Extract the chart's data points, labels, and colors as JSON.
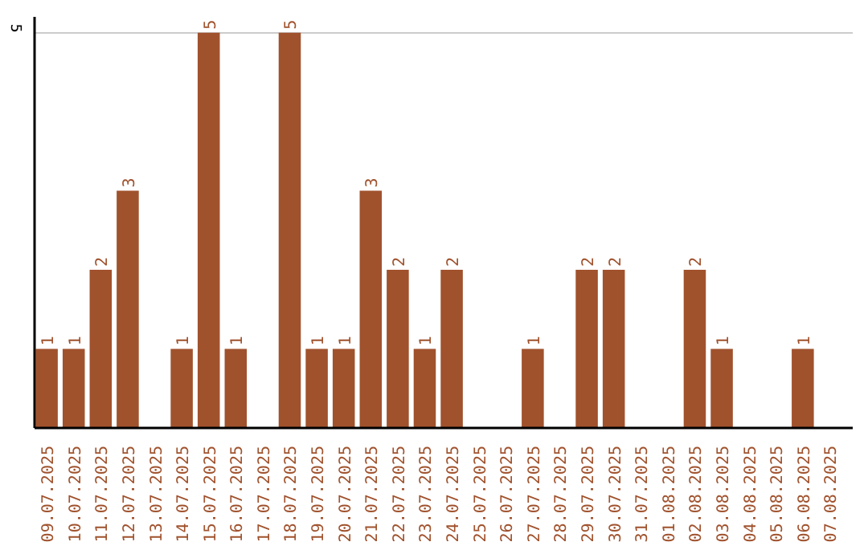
{
  "chart_data": {
    "type": "bar",
    "categories": [
      "09.07.2025",
      "10.07.2025",
      "11.07.2025",
      "12.07.2025",
      "13.07.2025",
      "14.07.2025",
      "15.07.2025",
      "16.07.2025",
      "17.07.2025",
      "18.07.2025",
      "19.07.2025",
      "20.07.2025",
      "21.07.2025",
      "22.07.2025",
      "23.07.2025",
      "24.07.2025",
      "25.07.2025",
      "26.07.2025",
      "27.07.2025",
      "28.07.2025",
      "29.07.2025",
      "30.07.2025",
      "31.07.2025",
      "01.08.2025",
      "02.08.2025",
      "03.08.2025",
      "04.08.2025",
      "05.08.2025",
      "06.08.2025",
      "07.08.2025"
    ],
    "values": [
      1,
      1,
      2,
      3,
      0,
      1,
      5,
      1,
      0,
      5,
      1,
      1,
      3,
      2,
      1,
      2,
      0,
      0,
      1,
      0,
      2,
      2,
      0,
      0,
      2,
      1,
      0,
      0,
      1,
      0
    ],
    "value_labels": [
      "1",
      "1",
      "2",
      "3",
      null,
      "1",
      "5",
      "1",
      null,
      "5",
      "1",
      "1",
      "3",
      "2",
      "1",
      "2",
      null,
      null,
      "1",
      null,
      "2",
      "2",
      null,
      null,
      "2",
      "1",
      null,
      null,
      "1",
      null
    ],
    "color": "#a0522d",
    "ylim": [
      0,
      5.2
    ],
    "yticks": [
      5
    ],
    "grid": "y"
  }
}
